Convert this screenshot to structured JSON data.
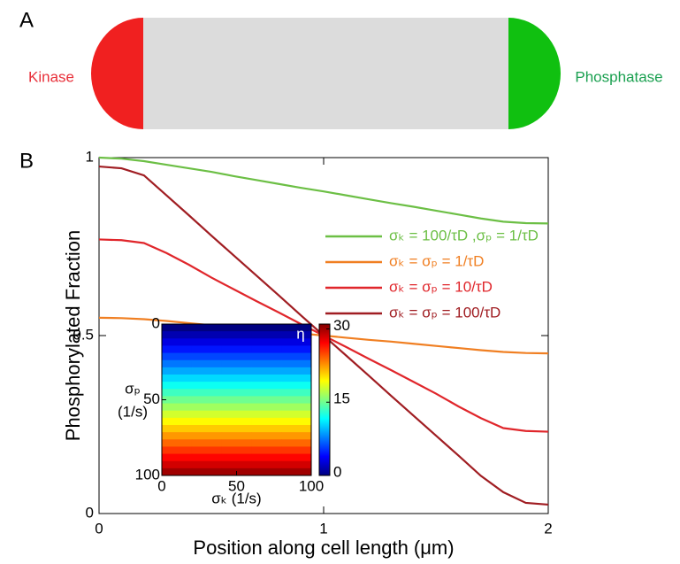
{
  "panel_labels": {
    "a": "A",
    "b": "B"
  },
  "diagram": {
    "left_label": "Kinase",
    "right_label": "Phosphatase"
  },
  "chart_data": [
    {
      "type": "line",
      "xlabel": "Position along cell length (μm)",
      "ylabel": "Phosphorylated Fraction",
      "x": [
        0,
        0.1,
        0.2,
        0.3,
        0.4,
        0.5,
        0.6,
        0.7,
        0.8,
        0.9,
        1.0,
        1.1,
        1.2,
        1.3,
        1.4,
        1.5,
        1.6,
        1.7,
        1.8,
        1.9,
        2.0
      ],
      "xlim": [
        0,
        2
      ],
      "ylim": [
        0,
        1
      ],
      "xticks": [
        0,
        1,
        2
      ],
      "yticks": [
        0,
        0.5,
        1
      ],
      "series": [
        {
          "name": "σₖ = 100/τD ,σₚ = 1/τD",
          "color": "#6cbf45",
          "values": [
            1.0,
            0.997,
            0.99,
            0.98,
            0.97,
            0.96,
            0.948,
            0.937,
            0.926,
            0.915,
            0.905,
            0.894,
            0.883,
            0.872,
            0.862,
            0.851,
            0.84,
            0.829,
            0.82,
            0.816,
            0.815
          ]
        },
        {
          "name": "σₖ = σₚ = 1/τD",
          "color": "#f07f22",
          "values": [
            0.55,
            0.549,
            0.546,
            0.541,
            0.535,
            0.529,
            0.523,
            0.517,
            0.512,
            0.506,
            0.5,
            0.494,
            0.488,
            0.483,
            0.477,
            0.471,
            0.465,
            0.459,
            0.454,
            0.451,
            0.45
          ]
        },
        {
          "name": "σₖ = σₚ = 10/τD",
          "color": "#e0262b",
          "values": [
            0.77,
            0.768,
            0.76,
            0.732,
            0.699,
            0.663,
            0.63,
            0.597,
            0.565,
            0.532,
            0.5,
            0.468,
            0.435,
            0.403,
            0.37,
            0.337,
            0.301,
            0.268,
            0.24,
            0.232,
            0.23
          ]
        },
        {
          "name": "σₖ = σₚ = 100/τD",
          "color": "#a01d22",
          "values": [
            0.975,
            0.97,
            0.95,
            0.894,
            0.838,
            0.781,
            0.725,
            0.669,
            0.613,
            0.556,
            0.5,
            0.444,
            0.388,
            0.331,
            0.275,
            0.219,
            0.163,
            0.106,
            0.06,
            0.03,
            0.025
          ]
        }
      ]
    },
    {
      "type": "heatmap",
      "xlabel": "σₖ (1/s)",
      "ylabel": [
        "σₚ",
        "(1/s)"
      ],
      "x": [
        0,
        25,
        50,
        75,
        100
      ],
      "y": [
        0,
        5,
        10,
        15,
        20,
        25,
        30,
        35,
        40,
        45,
        50,
        55,
        60,
        65,
        70,
        75,
        80,
        85,
        90,
        95,
        100
      ],
      "xlim": [
        0,
        100
      ],
      "ylim": [
        0,
        100
      ],
      "yreverse": true,
      "xticks": [
        0,
        50,
        100
      ],
      "yticks": [
        0,
        50,
        100
      ],
      "colormap": "jet",
      "colorbar": {
        "label": "η",
        "lim": [
          0,
          31
        ],
        "ticks": [
          0,
          15,
          30
        ]
      },
      "values": [
        [
          0,
          0,
          0,
          0,
          0
        ],
        [
          1.5,
          1.5,
          1.5,
          1.5,
          1.5
        ],
        [
          3,
          3,
          3,
          3,
          3
        ],
        [
          4.5,
          4.5,
          4.5,
          4.5,
          4.5
        ],
        [
          6,
          6,
          6,
          6,
          6
        ],
        [
          7.5,
          7.5,
          7.5,
          7.5,
          7.5
        ],
        [
          9,
          9,
          9,
          9,
          9
        ],
        [
          10.5,
          10.5,
          10.5,
          10.5,
          10.5
        ],
        [
          12,
          12,
          12,
          12,
          12
        ],
        [
          13.5,
          13.5,
          13.5,
          13.5,
          13.5
        ],
        [
          15,
          15,
          15,
          15,
          15
        ],
        [
          16.5,
          16.5,
          16.5,
          16.5,
          16.5
        ],
        [
          18,
          18,
          18,
          18,
          18
        ],
        [
          19.5,
          19.5,
          19.5,
          19.5,
          19.5
        ],
        [
          21,
          21,
          21,
          21,
          21
        ],
        [
          22.5,
          22.5,
          22.5,
          22.5,
          22.5
        ],
        [
          24,
          24,
          24,
          24,
          24
        ],
        [
          25.5,
          25.5,
          25.5,
          25.5,
          25.5
        ],
        [
          27,
          27,
          27,
          27,
          27
        ],
        [
          28.5,
          28.5,
          28.5,
          28.5,
          28.5
        ],
        [
          30,
          30,
          30,
          30,
          30
        ]
      ]
    }
  ]
}
